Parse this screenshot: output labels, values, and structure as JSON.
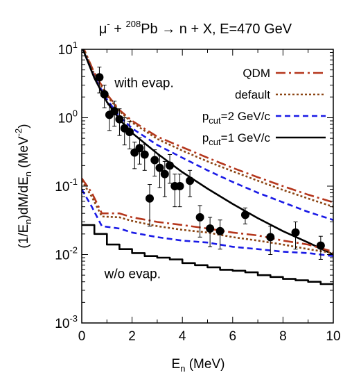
{
  "chart_data": {
    "type": "line",
    "title_parts": {
      "p1": "μ",
      "p1_sup": "-",
      "p2": " + ",
      "p2_sup": "208",
      "p3": "Pb → n + X, E=470 GeV"
    },
    "xlabel": {
      "main": "E",
      "sub": "n",
      "rest": " (MeV)"
    },
    "ylabel": {
      "a": "(1/E",
      "a_sub": "n",
      "b": ")dM/dE",
      "b_sub": "n",
      "c": " (MeV",
      "c_sup": "-2",
      "d": ")"
    },
    "xlim": [
      0,
      10
    ],
    "ylim": [
      0.001,
      10
    ],
    "yscale": "log",
    "x_ticks": [
      {
        "value": 0,
        "label": "0"
      },
      {
        "value": 2,
        "label": "2"
      },
      {
        "value": 4,
        "label": "4"
      },
      {
        "value": 6,
        "label": "6"
      },
      {
        "value": 8,
        "label": "8"
      },
      {
        "value": 10,
        "label": "10"
      }
    ],
    "y_ticks": [
      {
        "value": 10,
        "base": "10",
        "exp": "1"
      },
      {
        "value": 1,
        "base": "10",
        "exp": "0"
      },
      {
        "value": 0.1,
        "base": "10",
        "exp": "-1"
      },
      {
        "value": 0.01,
        "base": "10",
        "exp": "-2"
      },
      {
        "value": 0.001,
        "base": "10",
        "exp": "-3"
      }
    ],
    "legend": [
      {
        "label": "QDM",
        "series": "QDM"
      },
      {
        "label": "default",
        "series": "default"
      },
      {
        "label_main": "p",
        "label_sub": "cut",
        "label_rest": "=2 GeV/c",
        "series": "pcut2"
      },
      {
        "label_main": "p",
        "label_sub": "cut",
        "label_rest": "=1 GeV/c",
        "series": "pcut1"
      }
    ],
    "annotations": [
      {
        "text": "with evap.",
        "x": 1.3,
        "y": 2.8
      },
      {
        "text": "w/o evap.",
        "x": 0.9,
        "y": 0.0045
      }
    ],
    "series": [
      {
        "name": "QDM",
        "color": "#b5361c",
        "style": "dashdot",
        "group": "with evap.",
        "x": [
          0,
          0.5,
          1,
          1.5,
          2,
          3,
          4,
          5,
          6,
          7,
          8,
          9,
          10
        ],
        "y": [
          12,
          4.5,
          2.2,
          1.3,
          0.9,
          0.53,
          0.37,
          0.26,
          0.185,
          0.135,
          0.1,
          0.075,
          0.058
        ]
      },
      {
        "name": "default",
        "color": "#8b4513",
        "style": "dotted",
        "group": "with evap.",
        "x": [
          0,
          0.5,
          1,
          1.5,
          2,
          3,
          4,
          5,
          6,
          7,
          8,
          9,
          10
        ],
        "y": [
          12,
          4.3,
          2.1,
          1.25,
          0.85,
          0.49,
          0.33,
          0.23,
          0.165,
          0.12,
          0.088,
          0.066,
          0.05
        ]
      },
      {
        "name": "pcut2",
        "color": "#1a1ae6",
        "style": "dashed",
        "group": "with evap.",
        "x": [
          0,
          0.5,
          1,
          1.5,
          2,
          3,
          4,
          5,
          6,
          7,
          8,
          9,
          10
        ],
        "y": [
          11,
          3.9,
          1.85,
          1.05,
          0.7,
          0.4,
          0.26,
          0.17,
          0.115,
          0.08,
          0.058,
          0.042,
          0.032
        ]
      },
      {
        "name": "pcut1",
        "color": "#000000",
        "style": "solid",
        "group": "with evap.",
        "x": [
          0,
          0.5,
          1,
          1.5,
          2,
          3,
          4,
          5,
          6,
          7,
          8,
          9,
          10
        ],
        "y": [
          11,
          3.8,
          1.7,
          0.95,
          0.6,
          0.3,
          0.16,
          0.092,
          0.055,
          0.034,
          0.022,
          0.015,
          0.01
        ]
      },
      {
        "name": "QDM",
        "color": "#b5361c",
        "style": "dashdot",
        "group": "w/o evap.",
        "x": [
          0,
          0.4,
          0.8,
          1.5,
          2,
          3,
          4,
          5,
          6,
          7,
          8,
          9,
          10
        ],
        "y": [
          0.13,
          0.08,
          0.04,
          0.04,
          0.035,
          0.03,
          0.027,
          0.024,
          0.021,
          0.019,
          0.016,
          0.014,
          0.011
        ]
      },
      {
        "name": "default",
        "color": "#8b4513",
        "style": "dotted",
        "group": "w/o evap.",
        "x": [
          0,
          0.4,
          0.8,
          1.5,
          2,
          3,
          4,
          5,
          6,
          7,
          8,
          9,
          10
        ],
        "y": [
          0.12,
          0.07,
          0.036,
          0.035,
          0.031,
          0.026,
          0.023,
          0.021,
          0.018,
          0.016,
          0.014,
          0.012,
          0.0105
        ]
      },
      {
        "name": "pcut2",
        "color": "#1a1ae6",
        "style": "dashed",
        "group": "w/o evap.",
        "x": [
          0,
          0.4,
          0.8,
          1.5,
          2,
          3,
          4,
          5,
          6,
          7,
          8,
          9,
          10
        ],
        "y": [
          0.09,
          0.05,
          0.026,
          0.024,
          0.021,
          0.018,
          0.016,
          0.015,
          0.013,
          0.012,
          0.011,
          0.0105,
          0.0095
        ]
      },
      {
        "name": "pcut1",
        "color": "#000000",
        "style": "solid-step",
        "group": "w/o evap.",
        "x": [
          0,
          0.5,
          1,
          1.5,
          2,
          2.5,
          3,
          3.5,
          4,
          4.5,
          5,
          5.5,
          6,
          6.5,
          7,
          7.5,
          8,
          8.5,
          9,
          9.5,
          10
        ],
        "y": [
          0.027,
          0.02,
          0.014,
          0.012,
          0.0105,
          0.0095,
          0.009,
          0.0085,
          0.0075,
          0.007,
          0.0065,
          0.006,
          0.0058,
          0.0055,
          0.005,
          0.0047,
          0.0044,
          0.0042,
          0.004,
          0.0037,
          0.0033
        ]
      }
    ],
    "data_points": {
      "name": "data",
      "color": "#000000",
      "points": [
        {
          "x": 0.7,
          "y": 3.9,
          "err": 1.6
        },
        {
          "x": 0.9,
          "y": 2.2,
          "err": 0.8
        },
        {
          "x": 1.1,
          "y": 1.1,
          "err": 0.45
        },
        {
          "x": 1.3,
          "y": 1.25,
          "err": 0.5
        },
        {
          "x": 1.5,
          "y": 0.95,
          "err": 0.4
        },
        {
          "x": 1.7,
          "y": 0.7,
          "err": 0.3
        },
        {
          "x": 1.9,
          "y": 0.62,
          "err": 0.27
        },
        {
          "x": 2.1,
          "y": 0.31,
          "err": 0.13
        },
        {
          "x": 2.3,
          "y": 0.36,
          "err": 0.15
        },
        {
          "x": 2.5,
          "y": 0.29,
          "err": 0.12
        },
        {
          "x": 2.7,
          "y": 0.066,
          "err": 0.04
        },
        {
          "x": 2.9,
          "y": 0.24,
          "err": 0.1
        },
        {
          "x": 3.1,
          "y": 0.185,
          "err": 0.09
        },
        {
          "x": 3.3,
          "y": 0.15,
          "err": 0.08
        },
        {
          "x": 3.5,
          "y": 0.2,
          "err": 0.09
        },
        {
          "x": 3.7,
          "y": 0.1,
          "err": 0.05
        },
        {
          "x": 3.9,
          "y": 0.1,
          "err": 0.05
        },
        {
          "x": 4.3,
          "y": 0.12,
          "err": 0.05
        },
        {
          "x": 4.7,
          "y": 0.035,
          "err": 0.017
        },
        {
          "x": 5.1,
          "y": 0.024,
          "err": 0.011
        },
        {
          "x": 5.5,
          "y": 0.022,
          "err": 0.01
        },
        {
          "x": 6.5,
          "y": 0.038,
          "err": 0.01
        },
        {
          "x": 7.5,
          "y": 0.018,
          "err": 0.008
        },
        {
          "x": 8.5,
          "y": 0.021,
          "err": 0.009
        },
        {
          "x": 9.5,
          "y": 0.0135,
          "err": 0.005
        }
      ]
    },
    "grid": false,
    "legend_position": "top-right"
  }
}
